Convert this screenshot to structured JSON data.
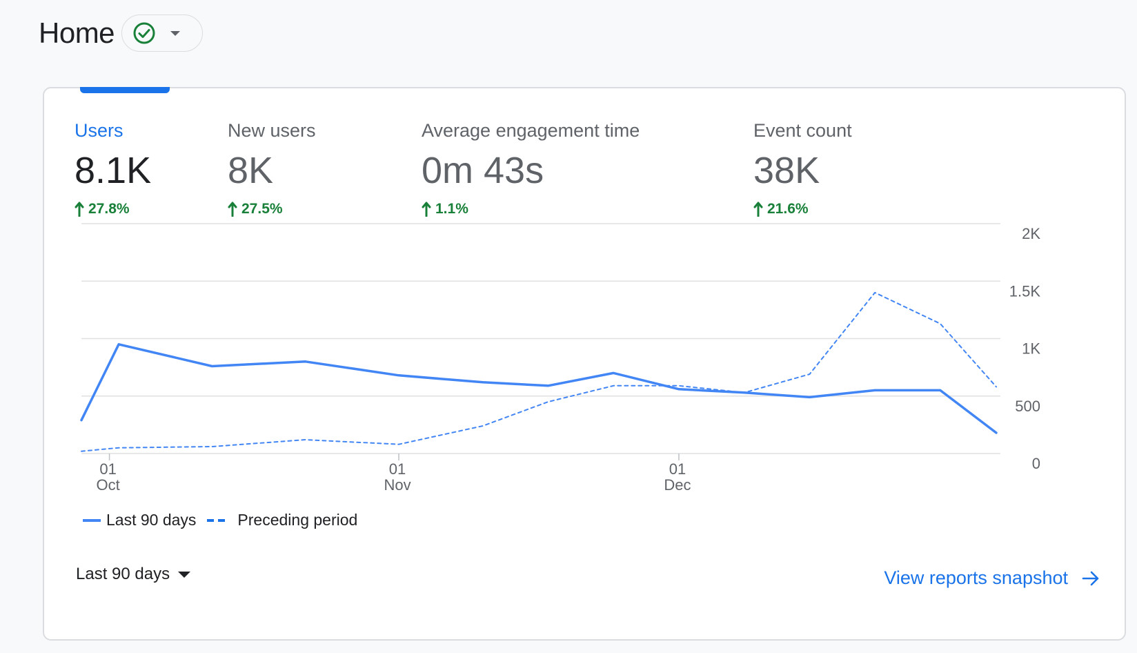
{
  "page": {
    "title": "Home",
    "status_icon": "check-circle-icon",
    "status_color": "#188038"
  },
  "metrics": [
    {
      "label": "Users",
      "value": "8.1K",
      "change": "27.8%",
      "active": true
    },
    {
      "label": "New users",
      "value": "8K",
      "change": "27.5%",
      "active": false
    },
    {
      "label": "Average engagement time",
      "value": "0m 43s",
      "change": "1.1%",
      "active": false
    },
    {
      "label": "Event count",
      "value": "38K",
      "change": "21.6%",
      "active": false
    }
  ],
  "chart_data": {
    "type": "line",
    "ylim": [
      0,
      2000
    ],
    "y_ticks": [
      "2K",
      "1.5K",
      "1K",
      "500",
      "0"
    ],
    "y_tick_values": [
      2000,
      1500,
      1000,
      500,
      0
    ],
    "x_ticks": [
      {
        "day": "01",
        "month": "Oct",
        "date": "2023-10-01"
      },
      {
        "day": "01",
        "month": "Nov",
        "date": "2023-11-01"
      },
      {
        "day": "01",
        "month": "Dec",
        "date": "2023-12-01"
      }
    ],
    "grid": true,
    "legend_position": "bottom-left",
    "series": [
      {
        "name": "Last 90 days",
        "style": "solid",
        "color": "#4285f4",
        "points": [
          [
            "2023-09-28",
            290
          ],
          [
            "2023-10-02",
            950
          ],
          [
            "2023-10-12",
            760
          ],
          [
            "2023-10-22",
            800
          ],
          [
            "2023-11-01",
            680
          ],
          [
            "2023-11-10",
            620
          ],
          [
            "2023-11-17",
            590
          ],
          [
            "2023-11-24",
            700
          ],
          [
            "2023-12-01",
            560
          ],
          [
            "2023-12-08",
            530
          ],
          [
            "2023-12-15",
            490
          ],
          [
            "2023-12-22",
            550
          ],
          [
            "2023-12-29",
            550
          ],
          [
            "2024-01-04",
            180
          ]
        ]
      },
      {
        "name": "Preceding period",
        "style": "dashed",
        "color": "#4285f4",
        "points": [
          [
            "2023-09-28",
            20
          ],
          [
            "2023-10-02",
            50
          ],
          [
            "2023-10-12",
            60
          ],
          [
            "2023-10-22",
            120
          ],
          [
            "2023-11-01",
            80
          ],
          [
            "2023-11-10",
            240
          ],
          [
            "2023-11-17",
            450
          ],
          [
            "2023-11-24",
            590
          ],
          [
            "2023-12-01",
            590
          ],
          [
            "2023-12-08",
            530
          ],
          [
            "2023-12-15",
            690
          ],
          [
            "2023-12-22",
            1400
          ],
          [
            "2023-12-29",
            1130
          ],
          [
            "2024-01-04",
            580
          ]
        ]
      }
    ]
  },
  "legend": {
    "current": "Last 90 days",
    "previous": "Preceding period"
  },
  "range_select": {
    "label": "Last 90 days"
  },
  "snapshot_link": {
    "label": "View reports snapshot"
  }
}
